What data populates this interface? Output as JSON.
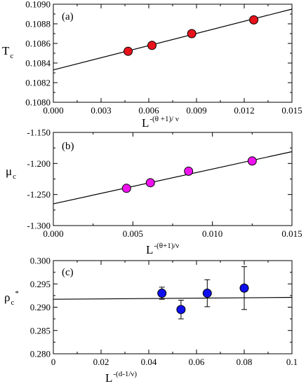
{
  "chart_data": [
    {
      "type": "scatter",
      "panel_label": "(a)",
      "ylabel": "T",
      "ylabel_sub": "c",
      "xlabel": "L",
      "xlabel_sup": "-(θ +1)/ ν",
      "xlim": [
        0,
        0.015
      ],
      "ylim": [
        0.108,
        0.109
      ],
      "x_ticks": [
        0,
        0.003,
        0.006,
        0.009,
        0.012,
        0.015
      ],
      "x_tick_labels": [
        "0.000",
        "0.003",
        "0.006",
        "0.009",
        "0.012",
        "0.015"
      ],
      "y_ticks": [
        0.108,
        0.1082,
        0.1084,
        0.1086,
        0.1088,
        0.109
      ],
      "y_tick_labels": [
        "0.1080",
        "0.1082",
        "0.1084",
        "0.1086",
        "0.1088",
        "0.1090"
      ],
      "marker_color": "#e8121b",
      "points": [
        {
          "x": 0.0047,
          "y": 0.10852
        },
        {
          "x": 0.0062,
          "y": 0.10858
        },
        {
          "x": 0.0087,
          "y": 0.1087
        },
        {
          "x": 0.0126,
          "y": 0.10884
        }
      ],
      "fit_line": {
        "x": [
          0,
          0.015
        ],
        "y": [
          0.10833,
          0.10895
        ]
      },
      "grid": false
    },
    {
      "type": "scatter",
      "panel_label": "(b)",
      "ylabel": "μ",
      "ylabel_sub": "c",
      "xlabel": "L",
      "xlabel_sup": "-(θ+1)/ν",
      "xlim": [
        0,
        0.015
      ],
      "ylim": [
        -1.3,
        -1.15
      ],
      "x_ticks": [
        0,
        0.005,
        0.01,
        0.015
      ],
      "x_tick_labels": [
        "0.000",
        "0.005",
        "0.010",
        "0.015"
      ],
      "y_ticks": [
        -1.3,
        -1.25,
        -1.2,
        -1.15
      ],
      "y_tick_labels": [
        "-1.300",
        "-1.250",
        "-1.200",
        "-1.150"
      ],
      "marker_color": "#ef12ef",
      "points": [
        {
          "x": 0.0046,
          "y": -1.24
        },
        {
          "x": 0.0061,
          "y": -1.231
        },
        {
          "x": 0.0085,
          "y": -1.2125
        },
        {
          "x": 0.0125,
          "y": -1.196
        }
      ],
      "fit_line": {
        "x": [
          0,
          0.015
        ],
        "y": [
          -1.265,
          -1.181
        ]
      },
      "grid": false
    },
    {
      "type": "scatter",
      "panel_label": "(c)",
      "ylabel": "ρ",
      "ylabel_sub": "c",
      "ylabel_sup": "*",
      "xlabel": "L",
      "xlabel_sup": "-(d-1/ν)",
      "xlim": [
        0,
        0.1
      ],
      "ylim": [
        0.28,
        0.3
      ],
      "x_ticks": [
        0,
        0.02,
        0.04,
        0.06,
        0.08,
        0.1
      ],
      "x_tick_labels": [
        "0",
        "0.02",
        "0.04",
        "0.06",
        "0.08",
        "0.1"
      ],
      "y_ticks": [
        0.28,
        0.285,
        0.29,
        0.295,
        0.3
      ],
      "y_tick_labels": [
        "0.280",
        "0.285",
        "0.290",
        "0.295",
        "0.300"
      ],
      "marker_color": "#1010ee",
      "points": [
        {
          "x": 0.0455,
          "y": 0.293,
          "err": 0.0013
        },
        {
          "x": 0.0535,
          "y": 0.2895,
          "err": 0.002
        },
        {
          "x": 0.0645,
          "y": 0.293,
          "err": 0.0029
        },
        {
          "x": 0.08,
          "y": 0.2941,
          "err": 0.0046
        }
      ],
      "fit_line": {
        "x": [
          0,
          0.1
        ],
        "y": [
          0.2917,
          0.2921
        ]
      },
      "grid": false
    }
  ]
}
